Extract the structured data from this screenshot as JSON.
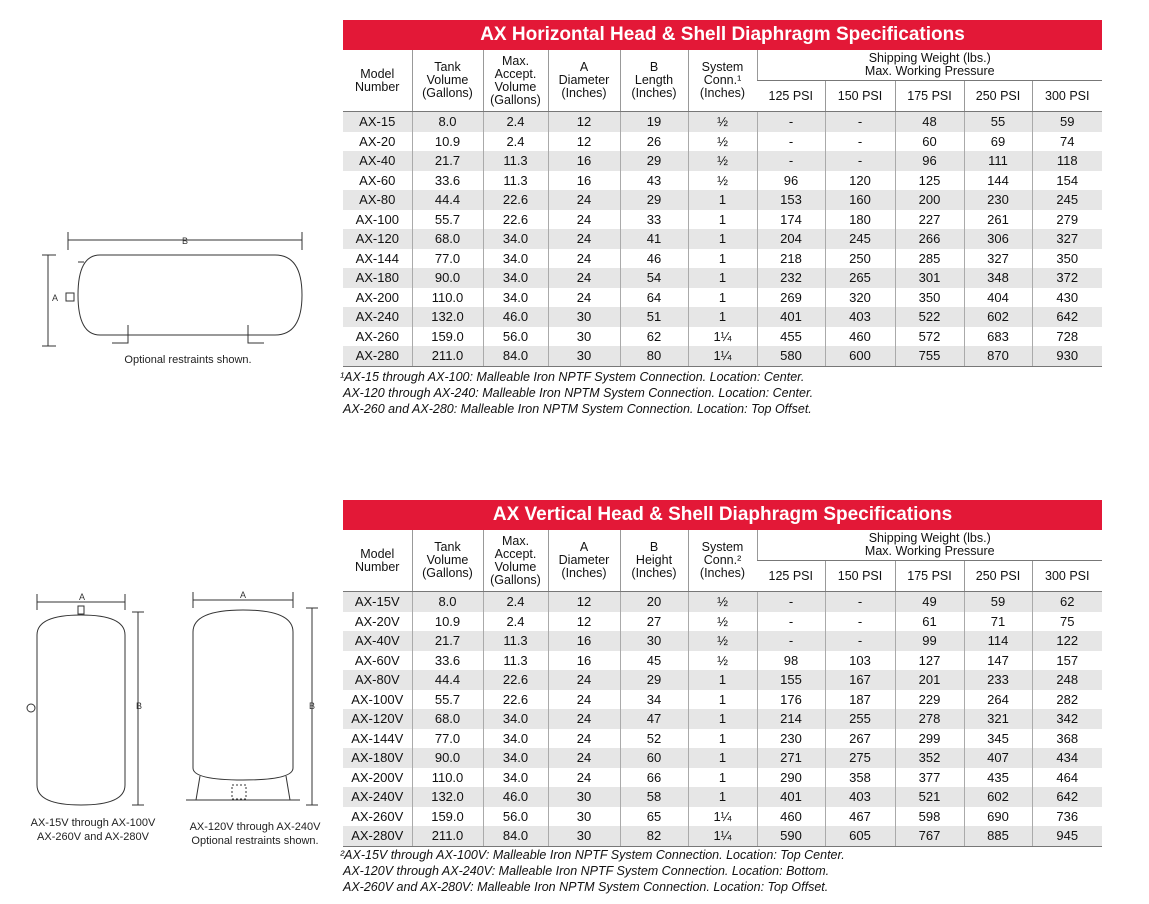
{
  "tables": [
    {
      "title": "AX Horizontal Head & Shell Diaphragm Specifications",
      "headers": [
        [
          "Model",
          "Number"
        ],
        [
          "Tank",
          "Volume",
          "(Gallons)"
        ],
        [
          "Max.",
          "Accept.",
          "Volume",
          "(Gallons)"
        ],
        [
          "A",
          "Diameter",
          "(Inches)"
        ],
        [
          "B",
          "Length",
          "(Inches)"
        ],
        [
          "System",
          "Conn.¹",
          "(Inches)"
        ]
      ],
      "group_header": [
        "Shipping Weight (lbs.)",
        "Max. Working Pressure"
      ],
      "pressures": [
        "125 PSI",
        "150 PSI",
        "175 PSI",
        "250 PSI",
        "300 PSI"
      ],
      "rows": [
        [
          "AX-15",
          "8.0",
          "2.4",
          "12",
          "19",
          "½",
          "-",
          "-",
          "48",
          "55",
          "59"
        ],
        [
          "AX-20",
          "10.9",
          "2.4",
          "12",
          "26",
          "½",
          "-",
          "-",
          "60",
          "69",
          "74"
        ],
        [
          "AX-40",
          "21.7",
          "11.3",
          "16",
          "29",
          "½",
          "-",
          "-",
          "96",
          "111",
          "118"
        ],
        [
          "AX-60",
          "33.6",
          "11.3",
          "16",
          "43",
          "½",
          "96",
          "120",
          "125",
          "144",
          "154"
        ],
        [
          "AX-80",
          "44.4",
          "22.6",
          "24",
          "29",
          "1",
          "153",
          "160",
          "200",
          "230",
          "245"
        ],
        [
          "AX-100",
          "55.7",
          "22.6",
          "24",
          "33",
          "1",
          "174",
          "180",
          "227",
          "261",
          "279"
        ],
        [
          "AX-120",
          "68.0",
          "34.0",
          "24",
          "41",
          "1",
          "204",
          "245",
          "266",
          "306",
          "327"
        ],
        [
          "AX-144",
          "77.0",
          "34.0",
          "24",
          "46",
          "1",
          "218",
          "250",
          "285",
          "327",
          "350"
        ],
        [
          "AX-180",
          "90.0",
          "34.0",
          "24",
          "54",
          "1",
          "232",
          "265",
          "301",
          "348",
          "372"
        ],
        [
          "AX-200",
          "110.0",
          "34.0",
          "24",
          "64",
          "1",
          "269",
          "320",
          "350",
          "404",
          "430"
        ],
        [
          "AX-240",
          "132.0",
          "46.0",
          "30",
          "51",
          "1",
          "401",
          "403",
          "522",
          "602",
          "642"
        ],
        [
          "AX-260",
          "159.0",
          "56.0",
          "30",
          "62",
          "1¼",
          "455",
          "460",
          "572",
          "683",
          "728"
        ],
        [
          "AX-280",
          "211.0",
          "84.0",
          "30",
          "80",
          "1¼",
          "580",
          "600",
          "755",
          "870",
          "930"
        ]
      ],
      "footnotes": [
        "¹AX-15 through AX-100: Malleable Iron NPTF System Connection. Location: Center.",
        "AX-120 through AX-240: Malleable Iron NPTM System Connection. Location: Center.",
        "AX-260 and AX-280: Malleable Iron NPTM System Connection. Location: Top Offset."
      ]
    },
    {
      "title": "AX Vertical Head & Shell Diaphragm Specifications",
      "headers": [
        [
          "Model",
          "Number"
        ],
        [
          "Tank",
          "Volume",
          "(Gallons)"
        ],
        [
          "Max.",
          "Accept.",
          "Volume",
          "(Gallons)"
        ],
        [
          "A",
          "Diameter",
          "(Inches)"
        ],
        [
          "B",
          "Height",
          "(Inches)"
        ],
        [
          "System",
          "Conn.²",
          "(Inches)"
        ]
      ],
      "group_header": [
        "Shipping Weight (lbs.)",
        "Max. Working Pressure"
      ],
      "pressures": [
        "125 PSI",
        "150 PSI",
        "175 PSI",
        "250 PSI",
        "300 PSI"
      ],
      "rows": [
        [
          "AX-15V",
          "8.0",
          "2.4",
          "12",
          "20",
          "½",
          "-",
          "-",
          "49",
          "59",
          "62"
        ],
        [
          "AX-20V",
          "10.9",
          "2.4",
          "12",
          "27",
          "½",
          "-",
          "-",
          "61",
          "71",
          "75"
        ],
        [
          "AX-40V",
          "21.7",
          "11.3",
          "16",
          "30",
          "½",
          "-",
          "-",
          "99",
          "114",
          "122"
        ],
        [
          "AX-60V",
          "33.6",
          "11.3",
          "16",
          "45",
          "½",
          "98",
          "103",
          "127",
          "147",
          "157"
        ],
        [
          "AX-80V",
          "44.4",
          "22.6",
          "24",
          "29",
          "1",
          "155",
          "167",
          "201",
          "233",
          "248"
        ],
        [
          "AX-100V",
          "55.7",
          "22.6",
          "24",
          "34",
          "1",
          "176",
          "187",
          "229",
          "264",
          "282"
        ],
        [
          "AX-120V",
          "68.0",
          "34.0",
          "24",
          "47",
          "1",
          "214",
          "255",
          "278",
          "321",
          "342"
        ],
        [
          "AX-144V",
          "77.0",
          "34.0",
          "24",
          "52",
          "1",
          "230",
          "267",
          "299",
          "345",
          "368"
        ],
        [
          "AX-180V",
          "90.0",
          "34.0",
          "24",
          "60",
          "1",
          "271",
          "275",
          "352",
          "407",
          "434"
        ],
        [
          "AX-200V",
          "110.0",
          "34.0",
          "24",
          "66",
          "1",
          "290",
          "358",
          "377",
          "435",
          "464"
        ],
        [
          "AX-240V",
          "132.0",
          "46.0",
          "30",
          "58",
          "1",
          "401",
          "403",
          "521",
          "602",
          "642"
        ],
        [
          "AX-260V",
          "159.0",
          "56.0",
          "30",
          "65",
          "1¼",
          "460",
          "467",
          "598",
          "690",
          "736"
        ],
        [
          "AX-280V",
          "211.0",
          "84.0",
          "30",
          "82",
          "1¼",
          "590",
          "605",
          "767",
          "885",
          "945"
        ]
      ],
      "footnotes": [
        "²AX-15V through AX-100V: Malleable Iron NPTF System Connection. Location: Top Center.",
        "AX-120V through AX-240V: Malleable Iron NPTF System Connection. Location: Bottom.",
        "AX-260V and AX-280V: Malleable Iron NPTM System Connection. Location: Top Offset."
      ]
    }
  ],
  "diagrams": {
    "horizontal": {
      "dim_b": "B",
      "dim_a": "A",
      "caption": "Optional restraints shown."
    },
    "vertical_left": {
      "dim_a": "A",
      "dim_b": "B",
      "caption": [
        "AX-15V through AX-100V",
        "AX-260V and AX-280V"
      ]
    },
    "vertical_right": {
      "dim_a": "A",
      "dim_b": "B",
      "caption": [
        "AX-120V through AX-240V",
        "Optional restraints shown."
      ]
    }
  }
}
